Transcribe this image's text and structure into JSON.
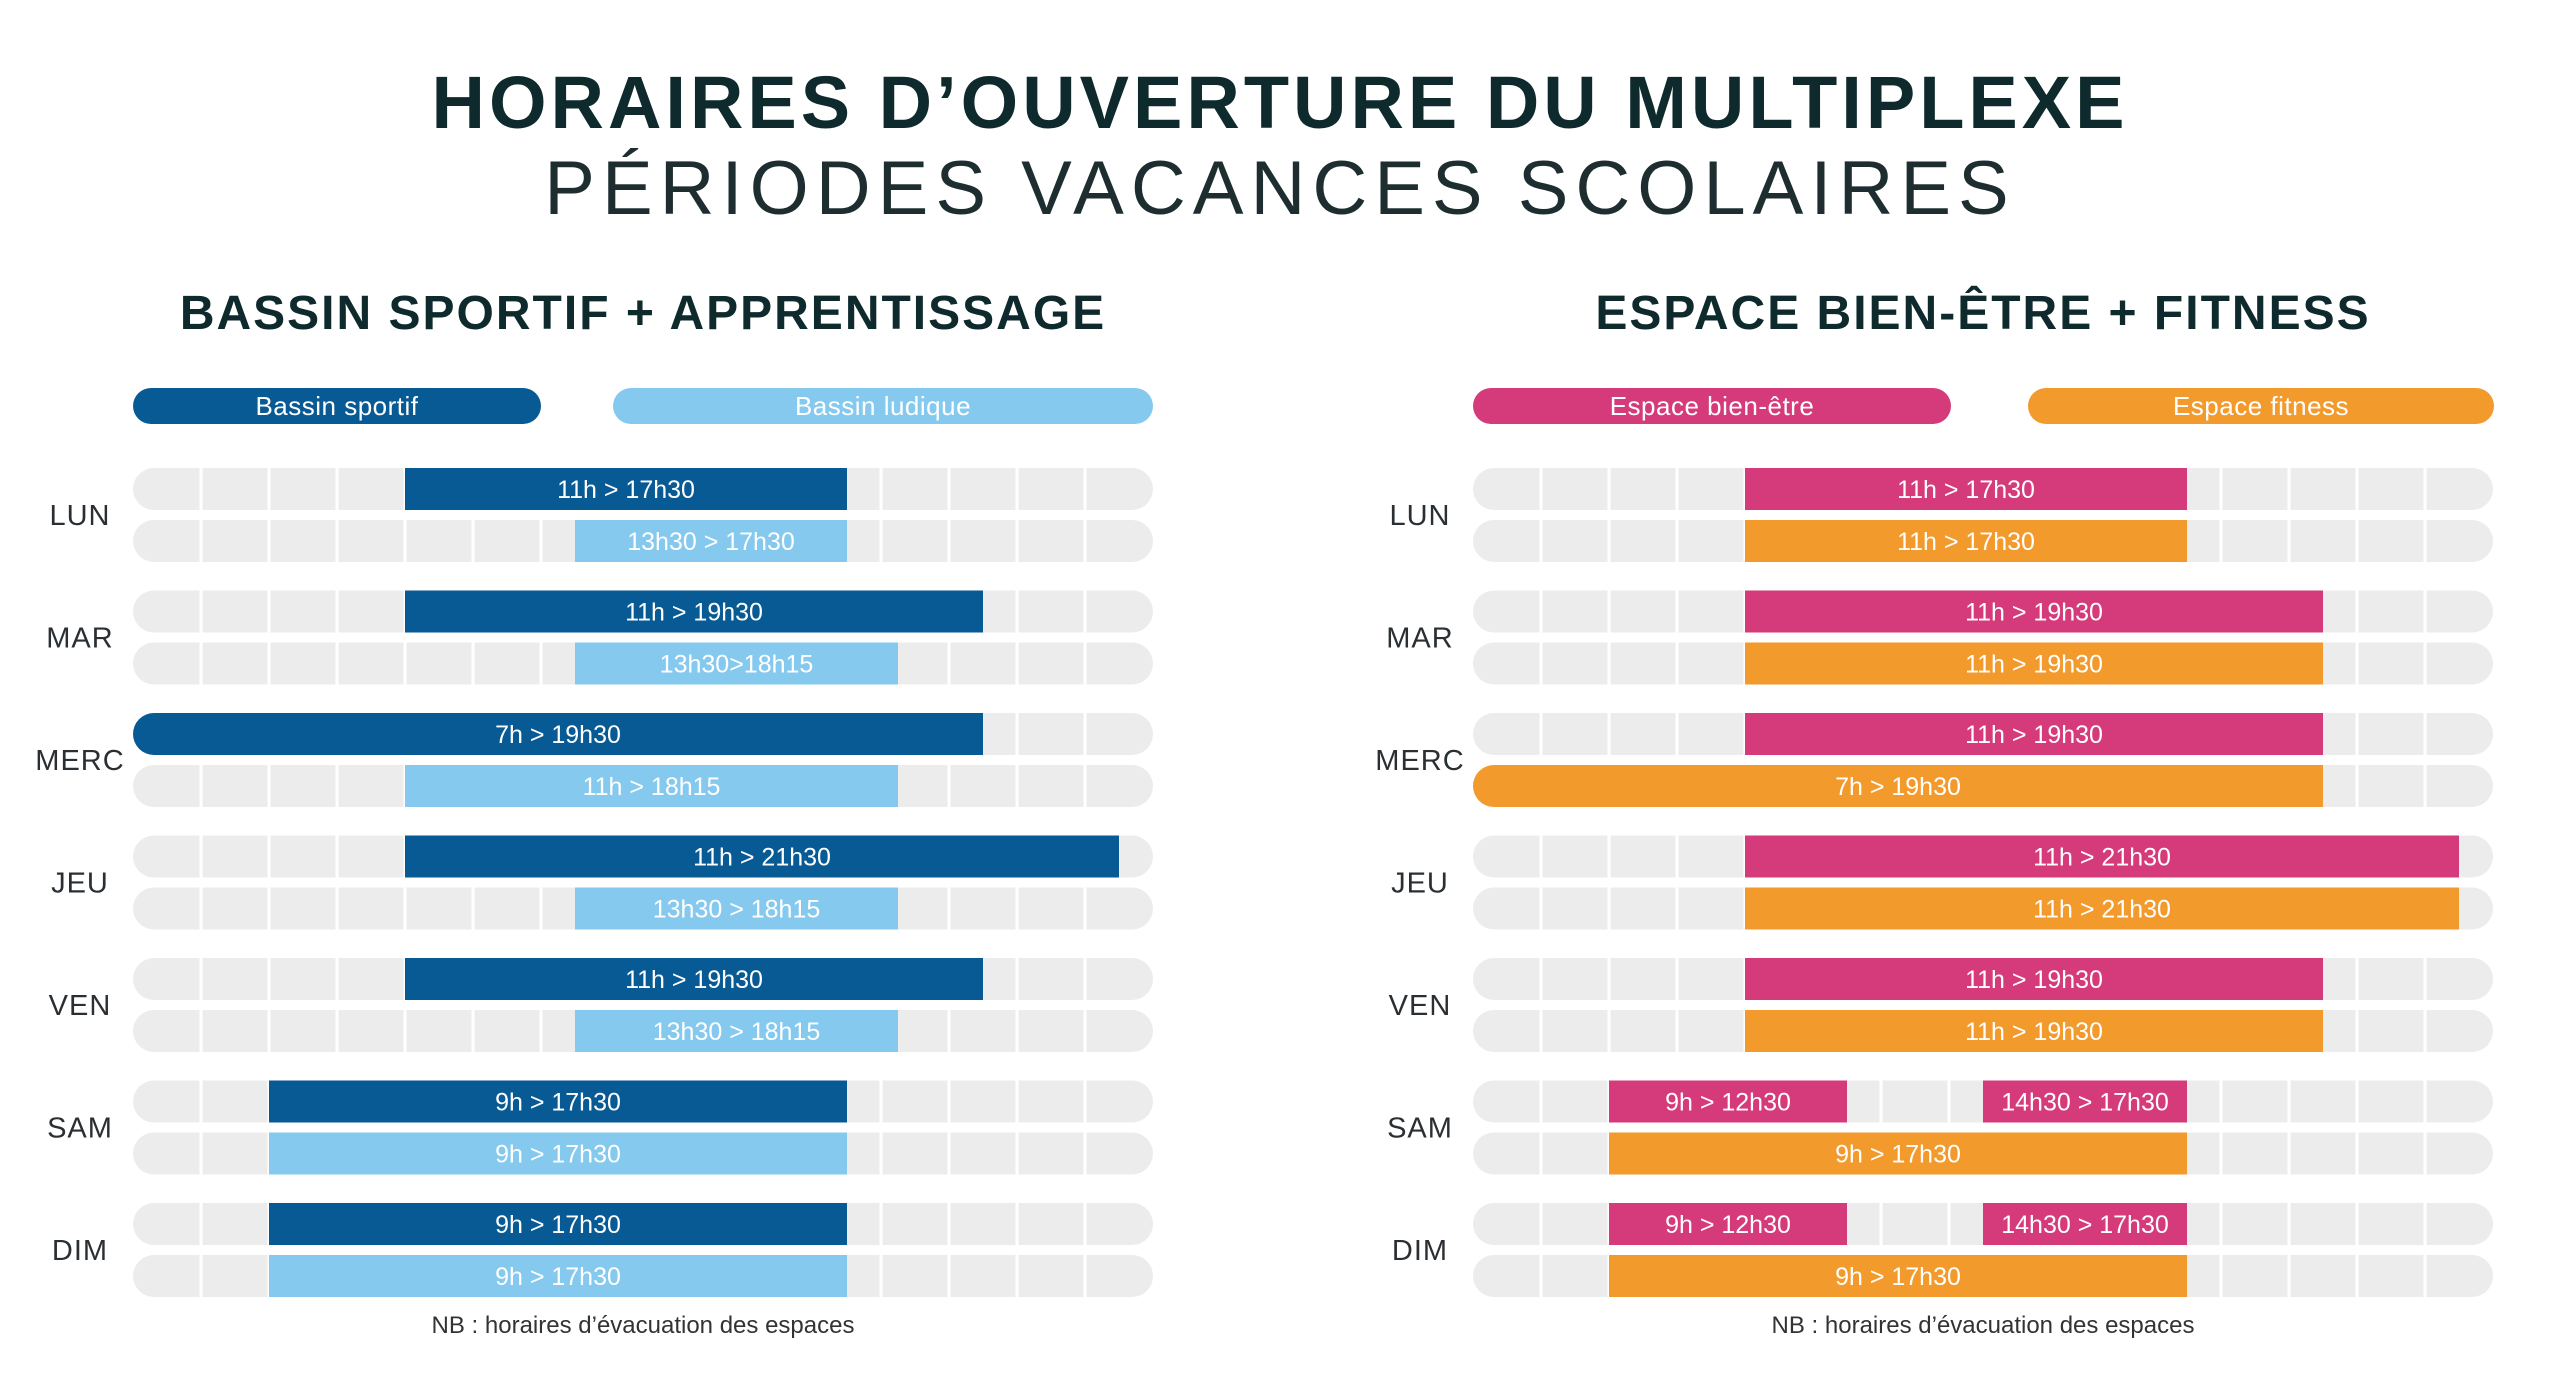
{
  "title": "HORAIRES D’OUVERTURE DU MULTIPLEXE",
  "subtitle": "PÉRIODES VACANCES SCOLAIRES",
  "chart_data": [
    {
      "type": "bar",
      "title": "BASSIN SPORTIF + APPRENTISSAGE",
      "footnote": "NB : horaires d’évacuation des espaces",
      "xlim": [
        7,
        22
      ],
      "categories": [
        "LUN",
        "MAR",
        "MERC",
        "JEU",
        "VEN",
        "SAM",
        "DIM"
      ],
      "series": [
        {
          "name": "Bassin sportif",
          "color": "#085a95",
          "bars": [
            [
              {
                "start": 11,
                "end": 17.5,
                "label": "11h > 17h30"
              }
            ],
            [
              {
                "start": 11,
                "end": 19.5,
                "label": "11h > 19h30"
              }
            ],
            [
              {
                "start": 7,
                "end": 19.5,
                "label": "7h > 19h30"
              }
            ],
            [
              {
                "start": 11,
                "end": 21.5,
                "label": "11h > 21h30"
              }
            ],
            [
              {
                "start": 11,
                "end": 19.5,
                "label": "11h > 19h30"
              }
            ],
            [
              {
                "start": 9,
                "end": 17.5,
                "label": "9h > 17h30"
              }
            ],
            [
              {
                "start": 9,
                "end": 17.5,
                "label": "9h > 17h30"
              }
            ]
          ]
        },
        {
          "name": "Bassin ludique",
          "color": "#86c9ef",
          "bars": [
            [
              {
                "start": 13.5,
                "end": 17.5,
                "label": "13h30 > 17h30"
              }
            ],
            [
              {
                "start": 13.5,
                "end": 18.25,
                "label": "13h30>18h15"
              }
            ],
            [
              {
                "start": 11,
                "end": 18.25,
                "label": "11h > 18h15"
              }
            ],
            [
              {
                "start": 13.5,
                "end": 18.25,
                "label": "13h30 > 18h15"
              }
            ],
            [
              {
                "start": 13.5,
                "end": 18.25,
                "label": "13h30 > 18h15"
              }
            ],
            [
              {
                "start": 9,
                "end": 17.5,
                "label": "9h > 17h30"
              }
            ],
            [
              {
                "start": 9,
                "end": 17.5,
                "label": "9h > 17h30"
              }
            ]
          ]
        }
      ]
    },
    {
      "type": "bar",
      "title": "ESPACE BIEN-ÊTRE + FITNESS",
      "footnote": "NB : horaires d’évacuation des espaces",
      "xlim": [
        7,
        22
      ],
      "categories": [
        "LUN",
        "MAR",
        "MERC",
        "JEU",
        "VEN",
        "SAM",
        "DIM"
      ],
      "series": [
        {
          "name": "Espace bien-être",
          "color": "#d53a7a",
          "bars": [
            [
              {
                "start": 11,
                "end": 17.5,
                "label": "11h > 17h30"
              }
            ],
            [
              {
                "start": 11,
                "end": 19.5,
                "label": "11h > 19h30"
              }
            ],
            [
              {
                "start": 11,
                "end": 19.5,
                "label": "11h > 19h30"
              }
            ],
            [
              {
                "start": 11,
                "end": 21.5,
                "label": "11h > 21h30"
              }
            ],
            [
              {
                "start": 11,
                "end": 19.5,
                "label": "11h > 19h30"
              }
            ],
            [
              {
                "start": 9,
                "end": 12.5,
                "label": "9h > 12h30"
              },
              {
                "start": 14.5,
                "end": 17.5,
                "label": "14h30 > 17h30"
              }
            ],
            [
              {
                "start": 9,
                "end": 12.5,
                "label": "9h > 12h30"
              },
              {
                "start": 14.5,
                "end": 17.5,
                "label": "14h30 > 17h30"
              }
            ]
          ]
        },
        {
          "name": "Espace fitness",
          "color": "#f39a2d",
          "bars": [
            [
              {
                "start": 11,
                "end": 17.5,
                "label": "11h > 17h30"
              }
            ],
            [
              {
                "start": 11,
                "end": 19.5,
                "label": "11h > 19h30"
              }
            ],
            [
              {
                "start": 7,
                "end": 19.5,
                "label": "7h > 19h30"
              }
            ],
            [
              {
                "start": 11,
                "end": 21.5,
                "label": "11h > 21h30"
              }
            ],
            [
              {
                "start": 11,
                "end": 19.5,
                "label": "11h > 19h30"
              }
            ],
            [
              {
                "start": 9,
                "end": 17.5,
                "label": "9h > 17h30"
              }
            ],
            [
              {
                "start": 9,
                "end": 17.5,
                "label": "9h > 17h30"
              }
            ]
          ]
        }
      ]
    }
  ]
}
